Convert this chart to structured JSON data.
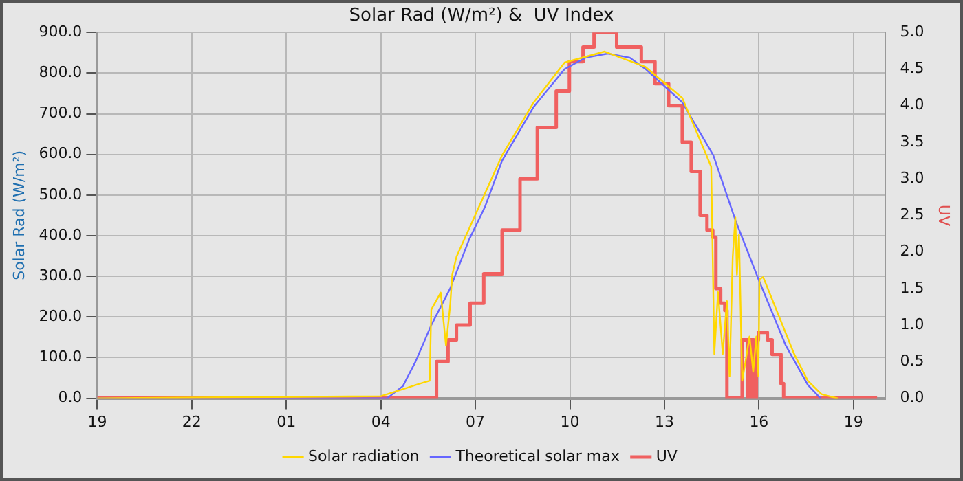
{
  "chart_data": {
    "type": "line",
    "title": "Solar Rad (W/m²) &  UV Index",
    "ylabel": "Solar Rad (W/m²)",
    "y2label": "UV",
    "xlim": [
      "--03-15T19:00",
      "--03-16T20:00"
    ],
    "xticks": [
      {
        "value": "--03-15T19:00",
        "label": "19"
      },
      {
        "value": "--03-15T22:00",
        "label": "22"
      },
      {
        "value": "--03-16T01:00",
        "label": "01"
      },
      {
        "value": "--03-16T04:00",
        "label": "04"
      },
      {
        "value": "--03-16T07:00",
        "label": "07"
      },
      {
        "value": "--03-16T10:00",
        "label": "10"
      },
      {
        "value": "--03-16T13:00",
        "label": "13"
      },
      {
        "value": "--03-16T16:00",
        "label": "16"
      },
      {
        "value": "--03-16T19:00",
        "label": "19"
      }
    ],
    "ylim": [
      0,
      900
    ],
    "yticks": [
      {
        "value": 0,
        "label": "0.0"
      },
      {
        "value": 100,
        "label": "100.0"
      },
      {
        "value": 200,
        "label": "200.0"
      },
      {
        "value": 300,
        "label": "300.0"
      },
      {
        "value": 400,
        "label": "400.0"
      },
      {
        "value": 500,
        "label": "500.0"
      },
      {
        "value": 600,
        "label": "600.0"
      },
      {
        "value": 700,
        "label": "700.0"
      },
      {
        "value": 800,
        "label": "800.0"
      },
      {
        "value": 900,
        "label": "900.0"
      }
    ],
    "y2lim": [
      0,
      5
    ],
    "y2ticks": [
      {
        "value": 0,
        "label": "0.0"
      },
      {
        "value": 0.5,
        "label": "0.5"
      },
      {
        "value": 1,
        "label": "1.0"
      },
      {
        "value": 1.5,
        "label": "1.5"
      },
      {
        "value": 2,
        "label": "2.0"
      },
      {
        "value": 2.5,
        "label": "2.5"
      },
      {
        "value": 3,
        "label": "3.0"
      },
      {
        "value": 3.5,
        "label": "3.5"
      },
      {
        "value": 4,
        "label": "4.0"
      },
      {
        "value": 4.5,
        "label": "4.5"
      },
      {
        "value": 5,
        "label": "5.0"
      }
    ],
    "grid": true,
    "legend": "bottom",
    "marker": "none",
    "series": [
      {
        "name": "Solar radiation",
        "color": "#ffd700",
        "x": [
          "--03-15T19:00",
          "--03-16T04:00",
          "--03-16T04:36",
          "--03-16T05:12",
          "--03-16T05:33",
          "--03-16T05:36",
          "--03-16T05:54",
          "--03-16T06:04",
          "--03-16T06:12",
          "--03-16T06:16",
          "--03-16T06:24",
          "--03-16T07:51",
          "--03-16T08:51",
          "--03-16T09:50",
          "--03-16T11:06",
          "--03-16T12:24",
          "--03-16T13:34",
          "--03-16T14:29",
          "--03-16T14:35",
          "--03-16T14:42",
          "--03-16T14:51",
          "--03-16T14:59",
          "--03-16T15:04",
          "--03-16T15:10",
          "--03-16T15:15",
          "--03-16T15:18",
          "--03-16T15:22",
          "--03-16T15:28",
          "--03-16T15:34",
          "--03-16T15:42",
          "--03-16T15:49",
          "--03-16T15:55",
          "--03-16T15:59",
          "--03-16T16:01",
          "--03-16T16:08",
          "--03-16T17:07",
          "--03-16T17:33",
          "--03-16T17:59",
          "--03-16T18:20",
          "--03-16T18:30"
        ],
        "values": [
          0,
          5,
          20,
          35,
          43,
          218,
          260,
          130,
          228,
          304,
          348,
          598,
          728,
          826,
          853,
          815,
          739,
          570,
          109,
          261,
          109,
          239,
          54,
          348,
          445,
          304,
          402,
          43,
          87,
          152,
          65,
          152,
          54,
          293,
          298,
          109,
          43,
          10,
          3,
          0
        ]
      },
      {
        "name": "Theoretical solar max",
        "color": "#6666ff",
        "x": [
          "--03-15T19:00",
          "--03-16T04:12",
          "--03-16T04:42",
          "--03-16T05:06",
          "--03-16T05:36",
          "--03-16T06:12",
          "--03-16T06:48",
          "--03-16T07:18",
          "--03-16T07:51",
          "--03-16T08:51",
          "--03-16T09:50",
          "--03-16T10:30",
          "--03-16T11:12",
          "--03-16T11:54",
          "--03-16T12:24",
          "--03-16T13:34",
          "--03-16T14:33",
          "--03-16T15:16",
          "--03-16T15:59",
          "--03-16T16:51",
          "--03-16T17:33",
          "--03-16T17:57"
        ],
        "values": [
          0,
          0,
          30,
          90,
          180,
          270,
          390,
          470,
          585,
          717,
          810,
          838,
          848,
          838,
          810,
          728,
          598,
          435,
          293,
          130,
          33,
          0
        ]
      },
      {
        "name": "UV",
        "type": "step",
        "axis": "y2",
        "color": "#f06060",
        "x": [
          "--03-15T19:00",
          "--03-16T05:46",
          "--03-16T06:08",
          "--03-16T06:24",
          "--03-16T06:50",
          "--03-16T07:16",
          "--03-16T07:51",
          "--03-16T08:25",
          "--03-16T08:58",
          "--03-16T09:34",
          "--03-16T09:59",
          "--03-16T10:25",
          "--03-16T10:46",
          "--03-16T11:29",
          "--03-16T12:16",
          "--03-16T12:42",
          "--03-16T13:08",
          "--03-16T13:34",
          "--03-16T13:51",
          "--03-16T14:08",
          "--03-16T14:21",
          "--03-16T14:32",
          "--03-16T14:38",
          "--03-16T14:47",
          "--03-16T14:55",
          "--03-16T14:59",
          "--03-16T15:28",
          "--03-16T15:38",
          "--03-16T15:44",
          "--03-16T15:50",
          "--03-16T15:55",
          "--03-16T15:59",
          "--03-16T16:16",
          "--03-16T16:25",
          "--03-16T16:42",
          "--03-16T16:47",
          "--03-16T19:45"
        ],
        "values": [
          0,
          0.5,
          0.8,
          1.0,
          1.3,
          1.7,
          2.3,
          3.0,
          3.7,
          4.2,
          4.6,
          4.8,
          5.0,
          4.8,
          4.6,
          4.3,
          4.0,
          3.5,
          3.1,
          2.5,
          2.3,
          2.2,
          1.5,
          1.3,
          1.2,
          0,
          0.8,
          0,
          0.8,
          0,
          0.8,
          0.9,
          0.8,
          0.6,
          0.2,
          0,
          0
        ]
      }
    ]
  }
}
